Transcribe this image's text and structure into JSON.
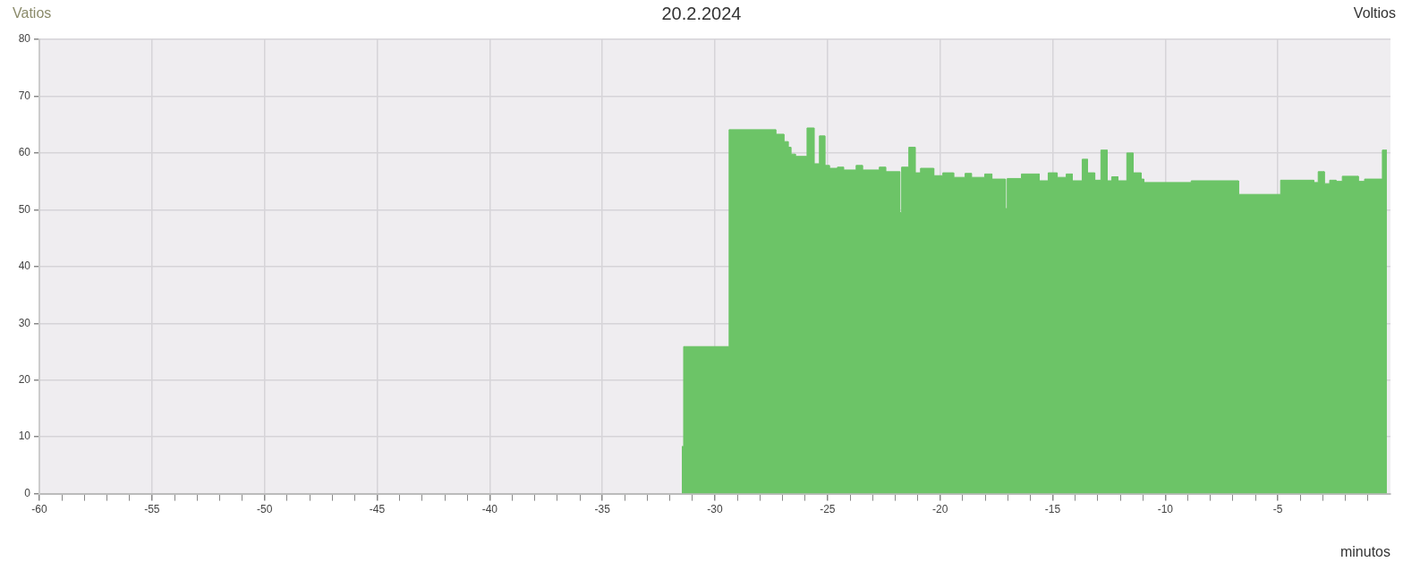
{
  "chart_data": {
    "type": "area",
    "title": "20.2.2024",
    "ylabel": "Vatios",
    "y2label": "Voltios",
    "xlabel": "minutos",
    "x": [
      -31.47,
      -31.39,
      -31.39,
      -29.37,
      -29.37,
      -27.3,
      -27.3,
      -26.94,
      -26.94,
      -26.75,
      -26.75,
      -26.63,
      -26.63,
      -26.43,
      -26.43,
      -25.91,
      -25.91,
      -25.6,
      -25.6,
      -25.36,
      -25.36,
      -25.12,
      -25.12,
      -24.92,
      -24.92,
      -24.56,
      -24.56,
      -24.29,
      -24.29,
      -23.73,
      -23.73,
      -23.45,
      -23.45,
      -22.7,
      -22.7,
      -22.42,
      -22.42,
      -21.79,
      -21.79,
      -21.71,
      -21.71,
      -21.39,
      -21.39,
      -21.11,
      -21.11,
      -20.87,
      -20.87,
      -20.28,
      -20.28,
      -19.88,
      -19.88,
      -19.4,
      -19.4,
      -18.89,
      -18.89,
      -18.61,
      -18.61,
      -18.02,
      -18.02,
      -17.7,
      -17.7,
      -17.1,
      -17.1,
      -17.02,
      -17.02,
      -16.39,
      -16.39,
      -15.6,
      -15.6,
      -15.2,
      -15.2,
      -14.8,
      -14.8,
      -14.4,
      -14.4,
      -14.13,
      -14.13,
      -13.69,
      -13.69,
      -13.45,
      -13.45,
      -13.13,
      -13.13,
      -12.86,
      -12.86,
      -12.58,
      -12.58,
      -12.38,
      -12.38,
      -12.1,
      -12.1,
      -11.71,
      -11.71,
      -11.43,
      -11.43,
      -11.07,
      -11.07,
      -10.95,
      -10.95,
      -8.85,
      -8.85,
      -6.75,
      -6.75,
      -4.88,
      -4.88,
      -3.41,
      -3.41,
      -3.21,
      -3.21,
      -2.94,
      -2.94,
      -2.7,
      -2.7,
      -2.42,
      -2.42,
      -2.14,
      -2.14,
      -1.43,
      -1.43,
      -1.15,
      -1.15,
      -0.36,
      -0.36,
      -0.16
    ],
    "series": [
      {
        "color": "#6cc467",
        "values": [
          8.3,
          8.3,
          25.9,
          25.9,
          64.1,
          64.1,
          63.3,
          63.3,
          62,
          62,
          61,
          61,
          59.8,
          59.8,
          59.4,
          59.4,
          64.4,
          64.4,
          58.1,
          58.1,
          63,
          63,
          57.8,
          57.8,
          57.3,
          57.3,
          57.5,
          57.5,
          57,
          57,
          57.8,
          57.8,
          57,
          57,
          57.5,
          57.5,
          56.7,
          56.7,
          49.5,
          49.5,
          57.5,
          57.5,
          61,
          61,
          56.5,
          56.5,
          57.3,
          57.3,
          56,
          56,
          56.5,
          56.5,
          55.7,
          55.7,
          56.4,
          56.4,
          55.7,
          55.7,
          56.3,
          56.3,
          55.4,
          55.4,
          50.2,
          50.2,
          55.5,
          55.5,
          56.3,
          56.3,
          55.1,
          55.1,
          56.5,
          56.5,
          55.7,
          55.7,
          56.3,
          56.3,
          55.1,
          55.1,
          58.9,
          58.9,
          56.5,
          56.5,
          55.2,
          55.2,
          60.5,
          60.5,
          55.1,
          55.1,
          55.8,
          55.8,
          55.1,
          55.1,
          60,
          60,
          56.5,
          56.5,
          55.4,
          55.4,
          54.8,
          54.8,
          55.1,
          55.1,
          52.7,
          52.7,
          55.2,
          55.2,
          54.8,
          54.8,
          56.7,
          56.7,
          54.6,
          54.6,
          55.2,
          55.2,
          55,
          55,
          55.9,
          55.9,
          55,
          55,
          55.4,
          55.4,
          60.5,
          60.5
        ]
      }
    ],
    "xlim": [
      -60,
      0
    ],
    "xticks": [
      -60,
      {
        "value": -59,
        "label": null
      },
      {
        "value": -58,
        "label": null
      },
      {
        "value": -57,
        "label": null
      },
      {
        "value": -56,
        "label": null
      },
      -55,
      {
        "value": -54,
        "label": null
      },
      {
        "value": -53,
        "label": null
      },
      {
        "value": -52,
        "label": null
      },
      {
        "value": -51,
        "label": null
      },
      -50,
      {
        "value": -49,
        "label": null
      },
      {
        "value": -48,
        "label": null
      },
      {
        "value": -47,
        "label": null
      },
      {
        "value": -46,
        "label": null
      },
      -45,
      {
        "value": -44,
        "label": null
      },
      {
        "value": -43,
        "label": null
      },
      {
        "value": -42,
        "label": null
      },
      {
        "value": -41,
        "label": null
      },
      -40,
      {
        "value": -39,
        "label": null
      },
      {
        "value": -38,
        "label": null
      },
      {
        "value": -37,
        "label": null
      },
      {
        "value": -36,
        "label": null
      },
      -35,
      {
        "value": -34,
        "label": null
      },
      {
        "value": -33,
        "label": null
      },
      {
        "value": -32,
        "label": null
      },
      {
        "value": -31,
        "label": null
      },
      -30,
      {
        "value": -29,
        "label": null
      },
      {
        "value": -28,
        "label": null
      },
      {
        "value": -27,
        "label": null
      },
      {
        "value": -26,
        "label": null
      },
      -25,
      {
        "value": -24,
        "label": null
      },
      {
        "value": -23,
        "label": null
      },
      {
        "value": -22,
        "label": null
      },
      {
        "value": -21,
        "label": null
      },
      -20,
      {
        "value": -19,
        "label": null
      },
      {
        "value": -18,
        "label": null
      },
      {
        "value": -17,
        "label": null
      },
      {
        "value": -16,
        "label": null
      },
      -15,
      {
        "value": -14,
        "label": null
      },
      {
        "value": -13,
        "label": null
      },
      {
        "value": -12,
        "label": null
      },
      {
        "value": -11,
        "label": null
      },
      -10,
      {
        "value": -9,
        "label": null
      },
      {
        "value": -8,
        "label": null
      },
      {
        "value": -7,
        "label": null
      },
      {
        "value": -6,
        "label": null
      },
      -5,
      {
        "value": -4,
        "label": null
      },
      {
        "value": -3,
        "label": null
      },
      {
        "value": -2,
        "label": null
      },
      {
        "value": -1,
        "label": null
      }
    ],
    "ylim": [
      0,
      80
    ],
    "yticks": [
      0,
      10,
      20,
      30,
      40,
      50,
      60,
      70,
      80
    ],
    "grid": true,
    "legend": false
  }
}
